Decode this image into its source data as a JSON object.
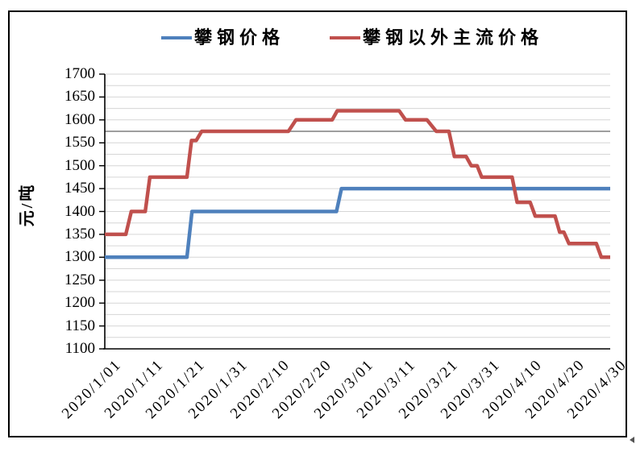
{
  "legend": {
    "items": [
      {
        "label": "攀钢价格",
        "color": "#4E80BC"
      },
      {
        "label": "攀钢以外主流价格",
        "color": "#C0504D"
      }
    ]
  },
  "chart_data": {
    "type": "line",
    "title": "",
    "xlabel": "",
    "ylabel": "元/吨",
    "ylim": [
      1100,
      1700
    ],
    "y_tick_step": 50,
    "y_minor_grid_step": 25,
    "emphasized_gridline_value": 1575,
    "grid": "horizontal-minor",
    "legend_position": "top-center",
    "y_tick_labels": [
      "1700",
      "1650",
      "1600",
      "1550",
      "1500",
      "1450",
      "1400",
      "1350",
      "1300",
      "1250",
      "1200",
      "1150",
      "1100"
    ],
    "x_tick_labels": [
      "2020/1/01",
      "2020/1/11",
      "2020/1/21",
      "2020/1/31",
      "2020/2/10",
      "2020/2/20",
      "2020/3/01",
      "2020/3/11",
      "2020/3/21",
      "2020/3/31",
      "2020/4/10",
      "2020/4/20",
      "2020/4/30"
    ],
    "x_tick_days": [
      0,
      10,
      20,
      30,
      40,
      50,
      60,
      70,
      80,
      90,
      100,
      110,
      120
    ],
    "x_range_days": [
      0,
      120
    ],
    "series": [
      {
        "name": "攀钢价格",
        "color": "#4E80BC",
        "step_points": [
          [
            0,
            1300
          ],
          [
            19.5,
            1300
          ],
          [
            20.7,
            1400
          ],
          [
            55,
            1400
          ],
          [
            56.2,
            1450
          ],
          [
            120,
            1450
          ]
        ]
      },
      {
        "name": "攀钢以外主流价格",
        "color": "#C0504D",
        "step_points": [
          [
            0,
            1350
          ],
          [
            5,
            1350
          ],
          [
            6.3,
            1400
          ],
          [
            9.6,
            1400
          ],
          [
            10.7,
            1475
          ],
          [
            19.5,
            1475
          ],
          [
            20.6,
            1555
          ],
          [
            21.7,
            1555
          ],
          [
            23,
            1575
          ],
          [
            43.6,
            1575
          ],
          [
            45.4,
            1600
          ],
          [
            54,
            1600
          ],
          [
            55.2,
            1620
          ],
          [
            69.9,
            1620
          ],
          [
            71.4,
            1600
          ],
          [
            76.5,
            1600
          ],
          [
            78.7,
            1575
          ],
          [
            81.7,
            1575
          ],
          [
            83,
            1520
          ],
          [
            85.8,
            1520
          ],
          [
            87,
            1500
          ],
          [
            88.4,
            1500
          ],
          [
            89.5,
            1475
          ],
          [
            96.7,
            1475
          ],
          [
            97.9,
            1420
          ],
          [
            101,
            1420
          ],
          [
            102.2,
            1390
          ],
          [
            106.9,
            1390
          ],
          [
            108,
            1355
          ],
          [
            109,
            1355
          ],
          [
            110.2,
            1330
          ],
          [
            116.7,
            1330
          ],
          [
            117.9,
            1300
          ],
          [
            120,
            1300
          ]
        ]
      }
    ]
  },
  "artifact": {
    "corner_mark": "selection-handle"
  }
}
